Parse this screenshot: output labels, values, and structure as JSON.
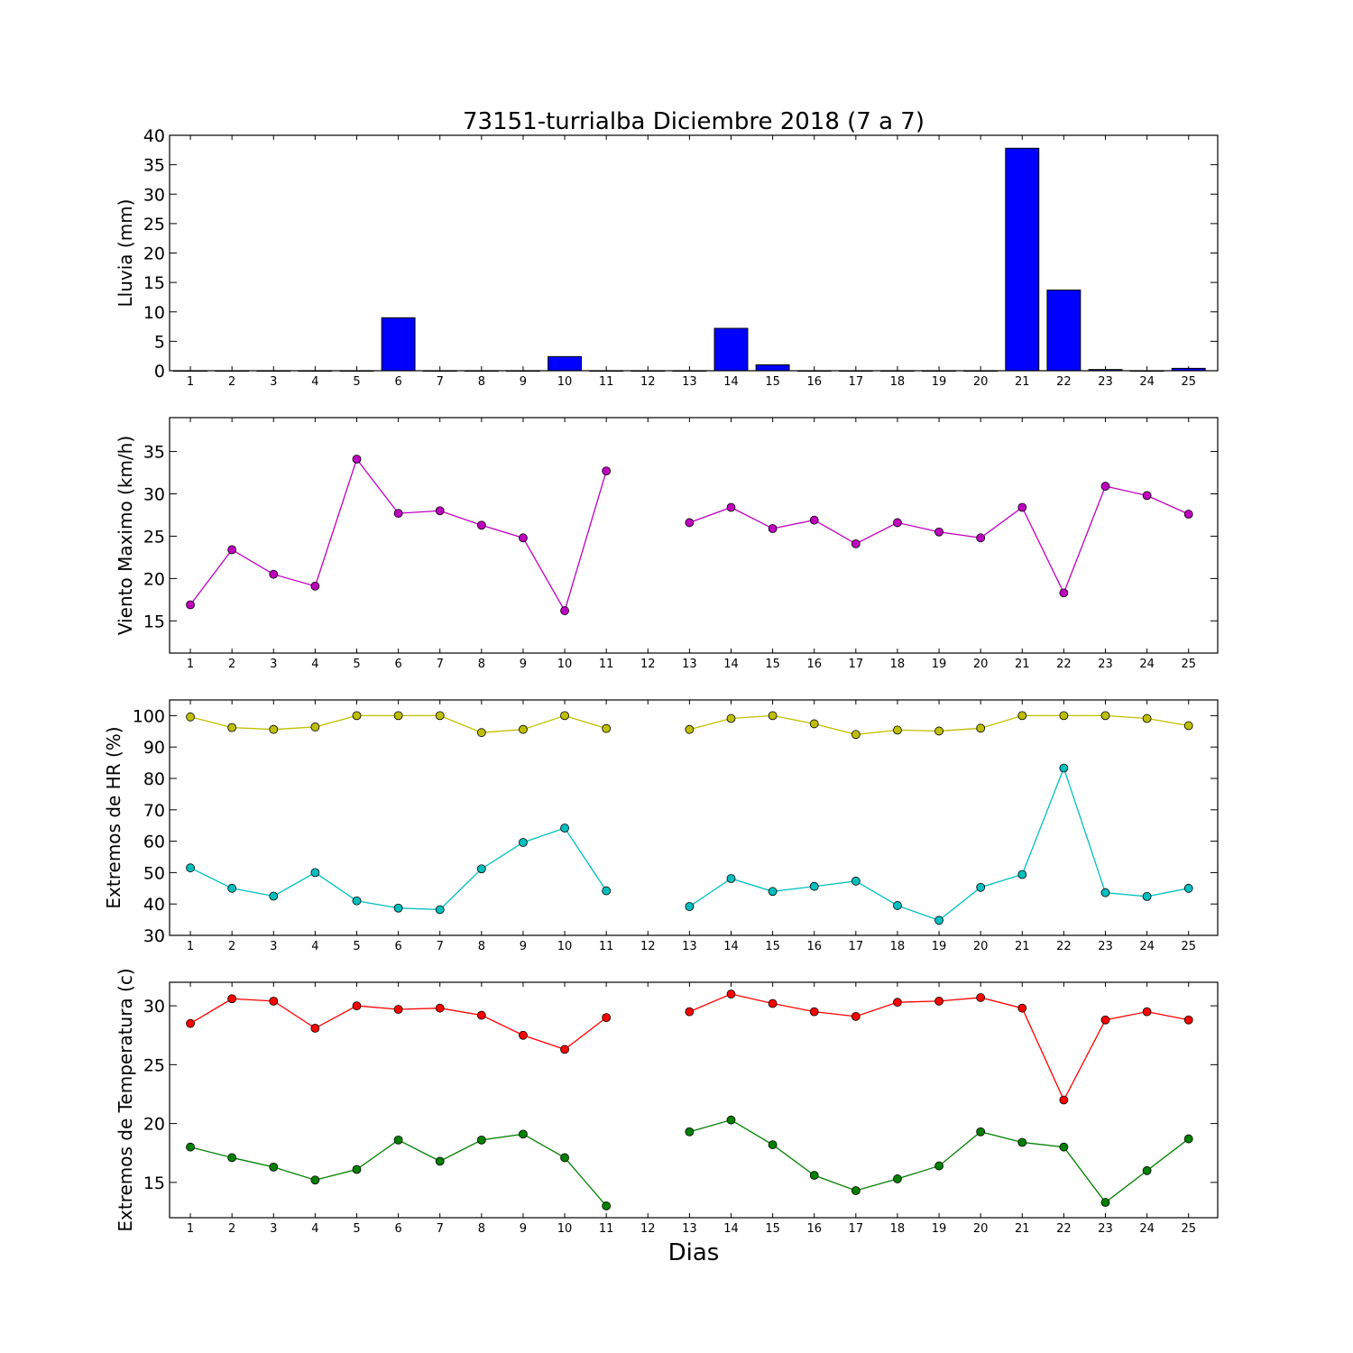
{
  "figure": {
    "title": "73151-turrialba Diciembre 2018  (7 a 7)",
    "xlabel": "Dias"
  },
  "chart_data": [
    {
      "id": "lluvia",
      "type": "bar",
      "ylabel": "Lluvia (mm)",
      "ylim": [
        0,
        40
      ],
      "yticks": [
        0,
        5,
        10,
        15,
        20,
        25,
        30,
        35,
        40
      ],
      "x": [
        1,
        2,
        3,
        4,
        5,
        6,
        7,
        8,
        9,
        10,
        11,
        12,
        13,
        14,
        15,
        16,
        17,
        18,
        19,
        20,
        21,
        22,
        23,
        24,
        25
      ],
      "series": [
        {
          "color": "#0000ff",
          "values": [
            0,
            0,
            0,
            0,
            0,
            9.0,
            0,
            0,
            0,
            2.4,
            0,
            0,
            0,
            7.2,
            1.0,
            0,
            0,
            0,
            0,
            0,
            37.8,
            13.7,
            0.2,
            0,
            0.4
          ]
        }
      ]
    },
    {
      "id": "viento",
      "type": "line",
      "ylabel": "Viento Maximo (km/h)",
      "ylim": [
        11.2,
        39
      ],
      "yticks": [
        15,
        20,
        25,
        30,
        35
      ],
      "x": [
        1,
        2,
        3,
        4,
        5,
        6,
        7,
        8,
        9,
        10,
        11,
        12,
        13,
        14,
        15,
        16,
        17,
        18,
        19,
        20,
        21,
        22,
        23,
        24,
        25
      ],
      "series": [
        {
          "color": "#bf00bf",
          "values": [
            16.9,
            23.4,
            20.5,
            19.1,
            34.1,
            27.7,
            28.0,
            26.3,
            24.8,
            16.2,
            32.7,
            null,
            26.6,
            28.4,
            25.9,
            26.9,
            24.1,
            26.6,
            25.5,
            24.8,
            28.4,
            18.3,
            30.9,
            29.8,
            27.6
          ]
        }
      ]
    },
    {
      "id": "hr",
      "type": "line",
      "ylabel": "Extremos de HR (%)",
      "ylim": [
        30,
        105
      ],
      "yticks": [
        30,
        40,
        50,
        60,
        70,
        80,
        90,
        100
      ],
      "x": [
        1,
        2,
        3,
        4,
        5,
        6,
        7,
        8,
        9,
        10,
        11,
        12,
        13,
        14,
        15,
        16,
        17,
        18,
        19,
        20,
        21,
        22,
        23,
        24,
        25
      ],
      "series": [
        {
          "color": "#bfbf00",
          "values": [
            99.6,
            96.2,
            95.6,
            96.4,
            100,
            100,
            100,
            94.6,
            95.6,
            100,
            95.9,
            null,
            95.6,
            99.1,
            100,
            97.4,
            94.0,
            95.4,
            95.1,
            96.0,
            100,
            100,
            100,
            99.1,
            96.8
          ]
        },
        {
          "color": "#00bfbf",
          "values": [
            51.5,
            45.0,
            42.5,
            50.0,
            41.0,
            38.7,
            38.2,
            51.2,
            59.6,
            64.2,
            44.2,
            null,
            39.2,
            48.1,
            44.0,
            45.6,
            47.3,
            39.5,
            34.8,
            45.3,
            49.4,
            83.3,
            43.6,
            42.4,
            45.0
          ]
        }
      ]
    },
    {
      "id": "temperatura",
      "type": "line",
      "ylabel": "Extremos de Temperatura (c)",
      "ylim": [
        12,
        32
      ],
      "yticks": [
        15,
        20,
        25,
        30
      ],
      "x": [
        1,
        2,
        3,
        4,
        5,
        6,
        7,
        8,
        9,
        10,
        11,
        12,
        13,
        14,
        15,
        16,
        17,
        18,
        19,
        20,
        21,
        22,
        23,
        24,
        25
      ],
      "series": [
        {
          "color": "#ff0000",
          "values": [
            28.5,
            30.6,
            30.4,
            28.1,
            30.0,
            29.7,
            29.8,
            29.2,
            27.5,
            26.3,
            29.0,
            null,
            29.5,
            31.0,
            30.2,
            29.5,
            29.1,
            30.3,
            30.4,
            30.7,
            29.8,
            22.0,
            28.8,
            29.5,
            28.8
          ]
        },
        {
          "color": "#008000",
          "values": [
            18.0,
            17.1,
            16.3,
            15.2,
            16.1,
            18.6,
            16.8,
            18.6,
            19.1,
            17.1,
            13.0,
            null,
            19.3,
            20.3,
            18.2,
            15.6,
            14.3,
            15.3,
            16.4,
            19.3,
            18.4,
            18.0,
            13.3,
            16.0,
            18.7
          ]
        }
      ]
    }
  ]
}
